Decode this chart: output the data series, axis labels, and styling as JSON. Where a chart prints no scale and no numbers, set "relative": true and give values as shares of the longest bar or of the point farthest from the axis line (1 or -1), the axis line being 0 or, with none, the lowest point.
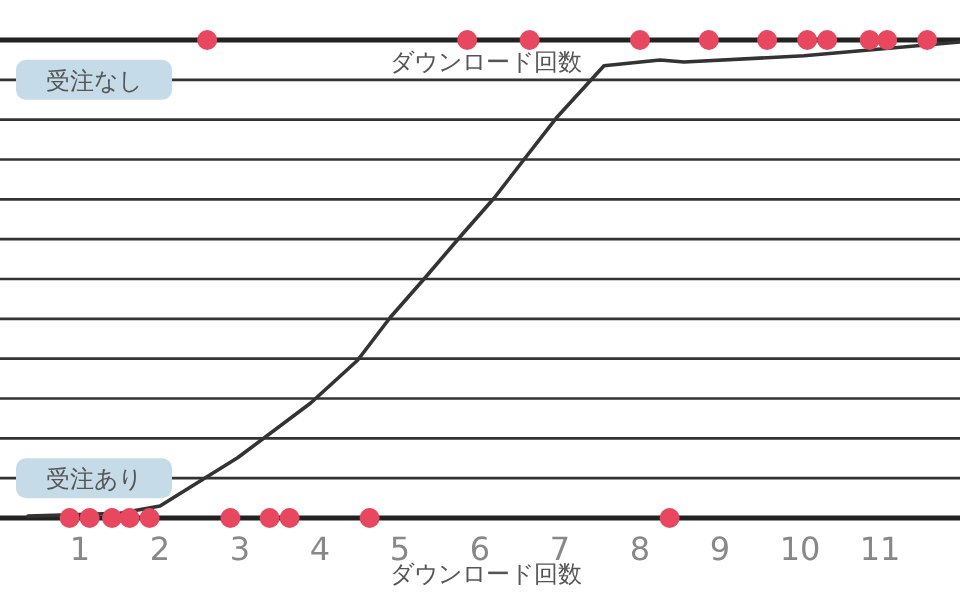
{
  "chart_data": {
    "type": "scatter",
    "relative": true,
    "xlabel": "ダウンロード回数",
    "annotations": [
      "受注なし",
      "受注あり",
      "ダウンロード回数"
    ],
    "xlim": [
      0,
      12
    ],
    "xticks": [
      1,
      2,
      3,
      4,
      5,
      6,
      7,
      8,
      9,
      10,
      11
    ],
    "grid": "y",
    "series": [
      {
        "marker": "circle",
        "color": "#e8485f",
        "x": [
          0.87,
          1.12,
          1.4,
          1.62,
          1.87,
          2.88,
          3.37,
          3.62,
          4.62,
          8.37,
          2.59,
          5.84,
          6.62,
          8.0,
          8.86,
          9.59,
          10.09,
          10.34,
          10.87,
          11.09,
          11.59
        ],
        "values": [
          0,
          0,
          0,
          0,
          0,
          0,
          0,
          0,
          0,
          0,
          1,
          1,
          1,
          1,
          1,
          1,
          1,
          1,
          1,
          1,
          1
        ]
      },
      {
        "type": "line",
        "color": "#333333",
        "x": [
          0.35,
          1.5,
          2.0,
          2.97,
          3.88,
          4.47,
          4.88,
          5.3,
          5.76,
          6.18,
          6.55,
          6.97,
          7.55,
          8.25,
          8.55,
          10.05,
          12.0
        ],
        "values": [
          0.004,
          0.01,
          0.025,
          0.126,
          0.24,
          0.33,
          0.42,
          0.5,
          0.59,
          0.67,
          0.75,
          0.84,
          0.946,
          0.958,
          0.954,
          0.967,
          0.996
        ]
      }
    ]
  }
}
